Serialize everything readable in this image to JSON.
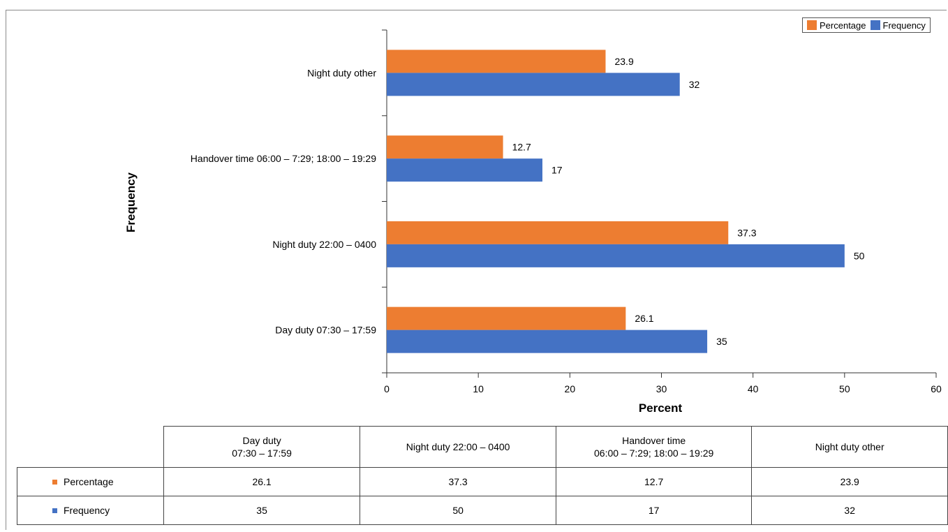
{
  "chart_data": {
    "type": "bar",
    "orientation": "horizontal",
    "categories": [
      "Night duty other",
      "Handover time 06:00 – 7:29; 18:00 – 19:29",
      "Night duty 22:00 – 0400",
      "Day duty 07:30 – 17:59"
    ],
    "series": [
      {
        "name": "Percentage",
        "color": "#ED7D31",
        "values": [
          23.9,
          12.7,
          37.3,
          26.1
        ],
        "labels": [
          "23.9",
          "12.7",
          "37.3",
          "26.1"
        ]
      },
      {
        "name": "Frequency",
        "color": "#4472C4",
        "values": [
          32,
          17,
          50,
          35
        ],
        "labels": [
          "32",
          "17",
          "50",
          "35"
        ]
      }
    ],
    "xlabel": "Percent",
    "ylabel": "Frequency",
    "xlim": [
      0,
      60
    ],
    "xticks": [
      "0",
      "10",
      "20",
      "30",
      "40",
      "50",
      "60"
    ],
    "grid": false,
    "legend_position": "top-right"
  },
  "table": {
    "columns": [
      "Day duty\n07:30 – 17:59",
      "Night duty 22:00 – 0400",
      "Handover time\n06:00 – 7:29; 18:00 – 19:29",
      "Night duty other"
    ],
    "rows": [
      {
        "label": "Percentage",
        "color": "#ED7D31",
        "values": [
          "26.1",
          "37.3",
          "12.7",
          "23.9"
        ]
      },
      {
        "label": "Frequency",
        "color": "#4472C4",
        "values": [
          "35",
          "50",
          "17",
          "32"
        ]
      }
    ]
  }
}
